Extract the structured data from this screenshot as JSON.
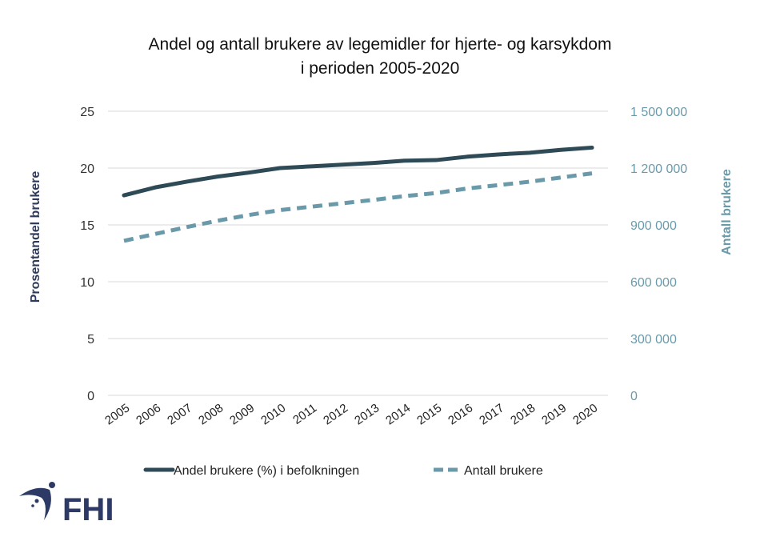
{
  "logo": {
    "text": "FHI"
  },
  "chart_data": {
    "type": "line",
    "title": [
      "Andel og antall brukere av legemidler for hjerte- og karsykdom",
      "i perioden 2005-2020"
    ],
    "categories": [
      "2005",
      "2006",
      "2007",
      "2008",
      "2009",
      "2010",
      "2011",
      "2012",
      "2013",
      "2014",
      "2015",
      "2016",
      "2017",
      "2018",
      "2019",
      "2020"
    ],
    "ylabel_left": "Prosentandel brukere",
    "ylabel_right": "Antall brukere",
    "ylim_left": [
      0,
      25
    ],
    "ylim_right": [
      0,
      1500000
    ],
    "yticks_left": [
      "0",
      "5",
      "10",
      "15",
      "20",
      "25"
    ],
    "yticks_right": [
      "0",
      "300 000",
      "600 000",
      "900 000",
      "1 200 000",
      "1 500 000"
    ],
    "grid": true,
    "legend_position": "bottom",
    "series": [
      {
        "name": "Andel brukere (%) i befolkningen",
        "axis": "left",
        "color": "#2e4a56",
        "style": "solid",
        "values": [
          17.6,
          18.3,
          18.8,
          19.25,
          19.6,
          20.0,
          20.15,
          20.3,
          20.45,
          20.65,
          20.7,
          21.0,
          21.2,
          21.35,
          21.6,
          21.8
        ]
      },
      {
        "name": "Antall brukere",
        "axis": "right",
        "color": "#6a9aaa",
        "style": "dashed",
        "values": [
          816000,
          852000,
          888000,
          922000,
          952000,
          978000,
          996000,
          1014000,
          1032000,
          1052000,
          1068000,
          1092000,
          1110000,
          1128000,
          1150000,
          1172000
        ]
      }
    ]
  }
}
